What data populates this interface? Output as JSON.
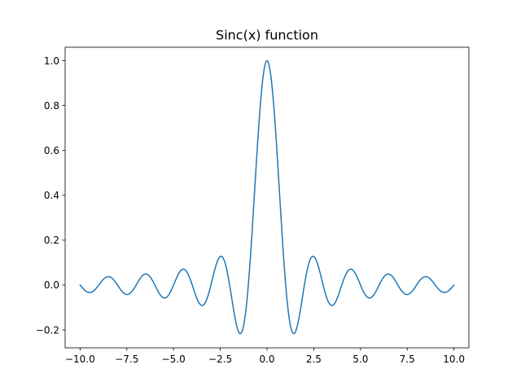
{
  "chart_data": {
    "type": "line",
    "title": "Sinc(x) function",
    "xlabel": "",
    "ylabel": "",
    "xlim": [
      -10.8,
      10.8
    ],
    "ylim": [
      -0.28,
      1.06
    ],
    "xticks": [
      -10.0,
      -7.5,
      -5.0,
      -2.5,
      0.0,
      2.5,
      5.0,
      7.5,
      10.0
    ],
    "xtick_labels": [
      "−10.0",
      "−7.5",
      "−5.0",
      "−2.5",
      "0.0",
      "2.5",
      "5.0",
      "7.5",
      "10.0"
    ],
    "yticks": [
      -0.2,
      0.0,
      0.2,
      0.4,
      0.6,
      0.8,
      1.0
    ],
    "ytick_labels": [
      "−0.2",
      "0.0",
      "0.2",
      "0.4",
      "0.6",
      "0.8",
      "1.0"
    ],
    "grid": false,
    "legend": "none",
    "series": [
      {
        "function": "sin(pi*x)/(pi*x)",
        "x_range": [
          -10,
          10
        ],
        "samples": 500,
        "color": "#1f77b4"
      }
    ]
  }
}
